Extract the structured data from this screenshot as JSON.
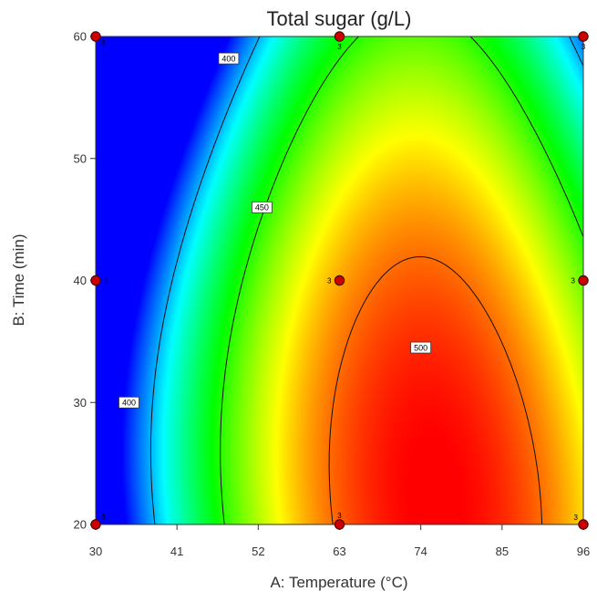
{
  "chart_data": {
    "type": "heatmap",
    "subtype": "contour",
    "title": "Total sugar (g/L)",
    "xlabel": "A: Temperature (°C)",
    "ylabel": "B: Time (min)",
    "xlim": [
      30,
      96
    ],
    "ylim": [
      20,
      60
    ],
    "x_ticks": [
      30,
      41,
      52,
      63,
      74,
      85,
      96
    ],
    "y_ticks": [
      20,
      30,
      40,
      50,
      60
    ],
    "colormap": [
      "#0000ff",
      "#00ffff",
      "#00ff00",
      "#ffff00",
      "#ff0000"
    ],
    "response_range": [
      375,
      515
    ],
    "contours": [
      {
        "level": 400,
        "labels": [
          {
            "text": "400",
            "x": 48,
            "y": 58.2
          },
          {
            "text": "400",
            "x": 34.5,
            "y": 30
          }
        ]
      },
      {
        "level": 450,
        "labels": [
          {
            "text": "450",
            "x": 52.5,
            "y": 46
          }
        ]
      },
      {
        "level": 500,
        "labels": [
          {
            "text": "500",
            "x": 74,
            "y": 34.5
          }
        ]
      }
    ],
    "design_points": [
      {
        "x": 30,
        "y": 60,
        "replicates": null
      },
      {
        "x": 63,
        "y": 60,
        "replicates": 3
      },
      {
        "x": 96,
        "y": 60,
        "replicates": 3
      },
      {
        "x": 30,
        "y": 40,
        "replicates": 3
      },
      {
        "x": 63,
        "y": 40,
        "replicates": 3
      },
      {
        "x": 96,
        "y": 40,
        "replicates": 3
      },
      {
        "x": 30,
        "y": 20,
        "replicates": 3
      },
      {
        "x": 63,
        "y": 20,
        "replicates": 3
      },
      {
        "x": 96,
        "y": 20,
        "replicates": 3
      }
    ],
    "corner_replicate_marker": {
      "text": "3",
      "x": 30,
      "y": 60
    }
  }
}
